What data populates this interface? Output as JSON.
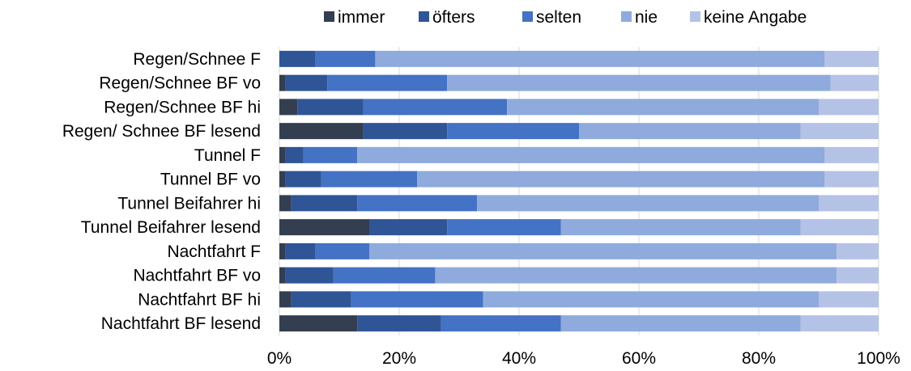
{
  "chart_data": {
    "type": "bar",
    "orientation": "horizontal",
    "stacked": true,
    "percent_stacked": true,
    "categories": [
      "Regen/Schnee F",
      "Regen/Schnee BF vo",
      "Regen/Schnee BF hi",
      "Regen/ Schnee BF lesend",
      "Tunnel F",
      "Tunnel BF vo",
      "Tunnel Beifahrer hi",
      "Tunnel Beifahrer lesend",
      "Nachtfahrt F",
      "Nachtfahrt BF vo",
      "Nachtfahrt BF hi",
      "Nachtfahrt BF lesend"
    ],
    "series": [
      {
        "name": "immer",
        "color": "#333f50",
        "values": [
          0,
          1,
          3,
          14,
          1,
          1,
          2,
          15,
          1,
          1,
          2,
          13
        ]
      },
      {
        "name": "öfters",
        "color": "#2f5597",
        "values": [
          6,
          7,
          11,
          14,
          3,
          6,
          11,
          13,
          5,
          8,
          10,
          14
        ]
      },
      {
        "name": "selten",
        "color": "#4472c4",
        "values": [
          10,
          20,
          24,
          22,
          9,
          16,
          20,
          19,
          9,
          17,
          22,
          20
        ]
      },
      {
        "name": "nie",
        "color": "#8faadc",
        "values": [
          75,
          64,
          52,
          37,
          78,
          68,
          57,
          40,
          78,
          67,
          56,
          40
        ]
      },
      {
        "name": "keine Angabe",
        "color": "#b4c2e6",
        "values": [
          9,
          8,
          10,
          13,
          9,
          9,
          10,
          13,
          7,
          7,
          10,
          13
        ]
      }
    ],
    "xlim": [
      0,
      100
    ],
    "x_ticks": [
      "0%",
      "20%",
      "40%",
      "60%",
      "80%",
      "100%"
    ],
    "grid": true,
    "legend_position": "top"
  }
}
